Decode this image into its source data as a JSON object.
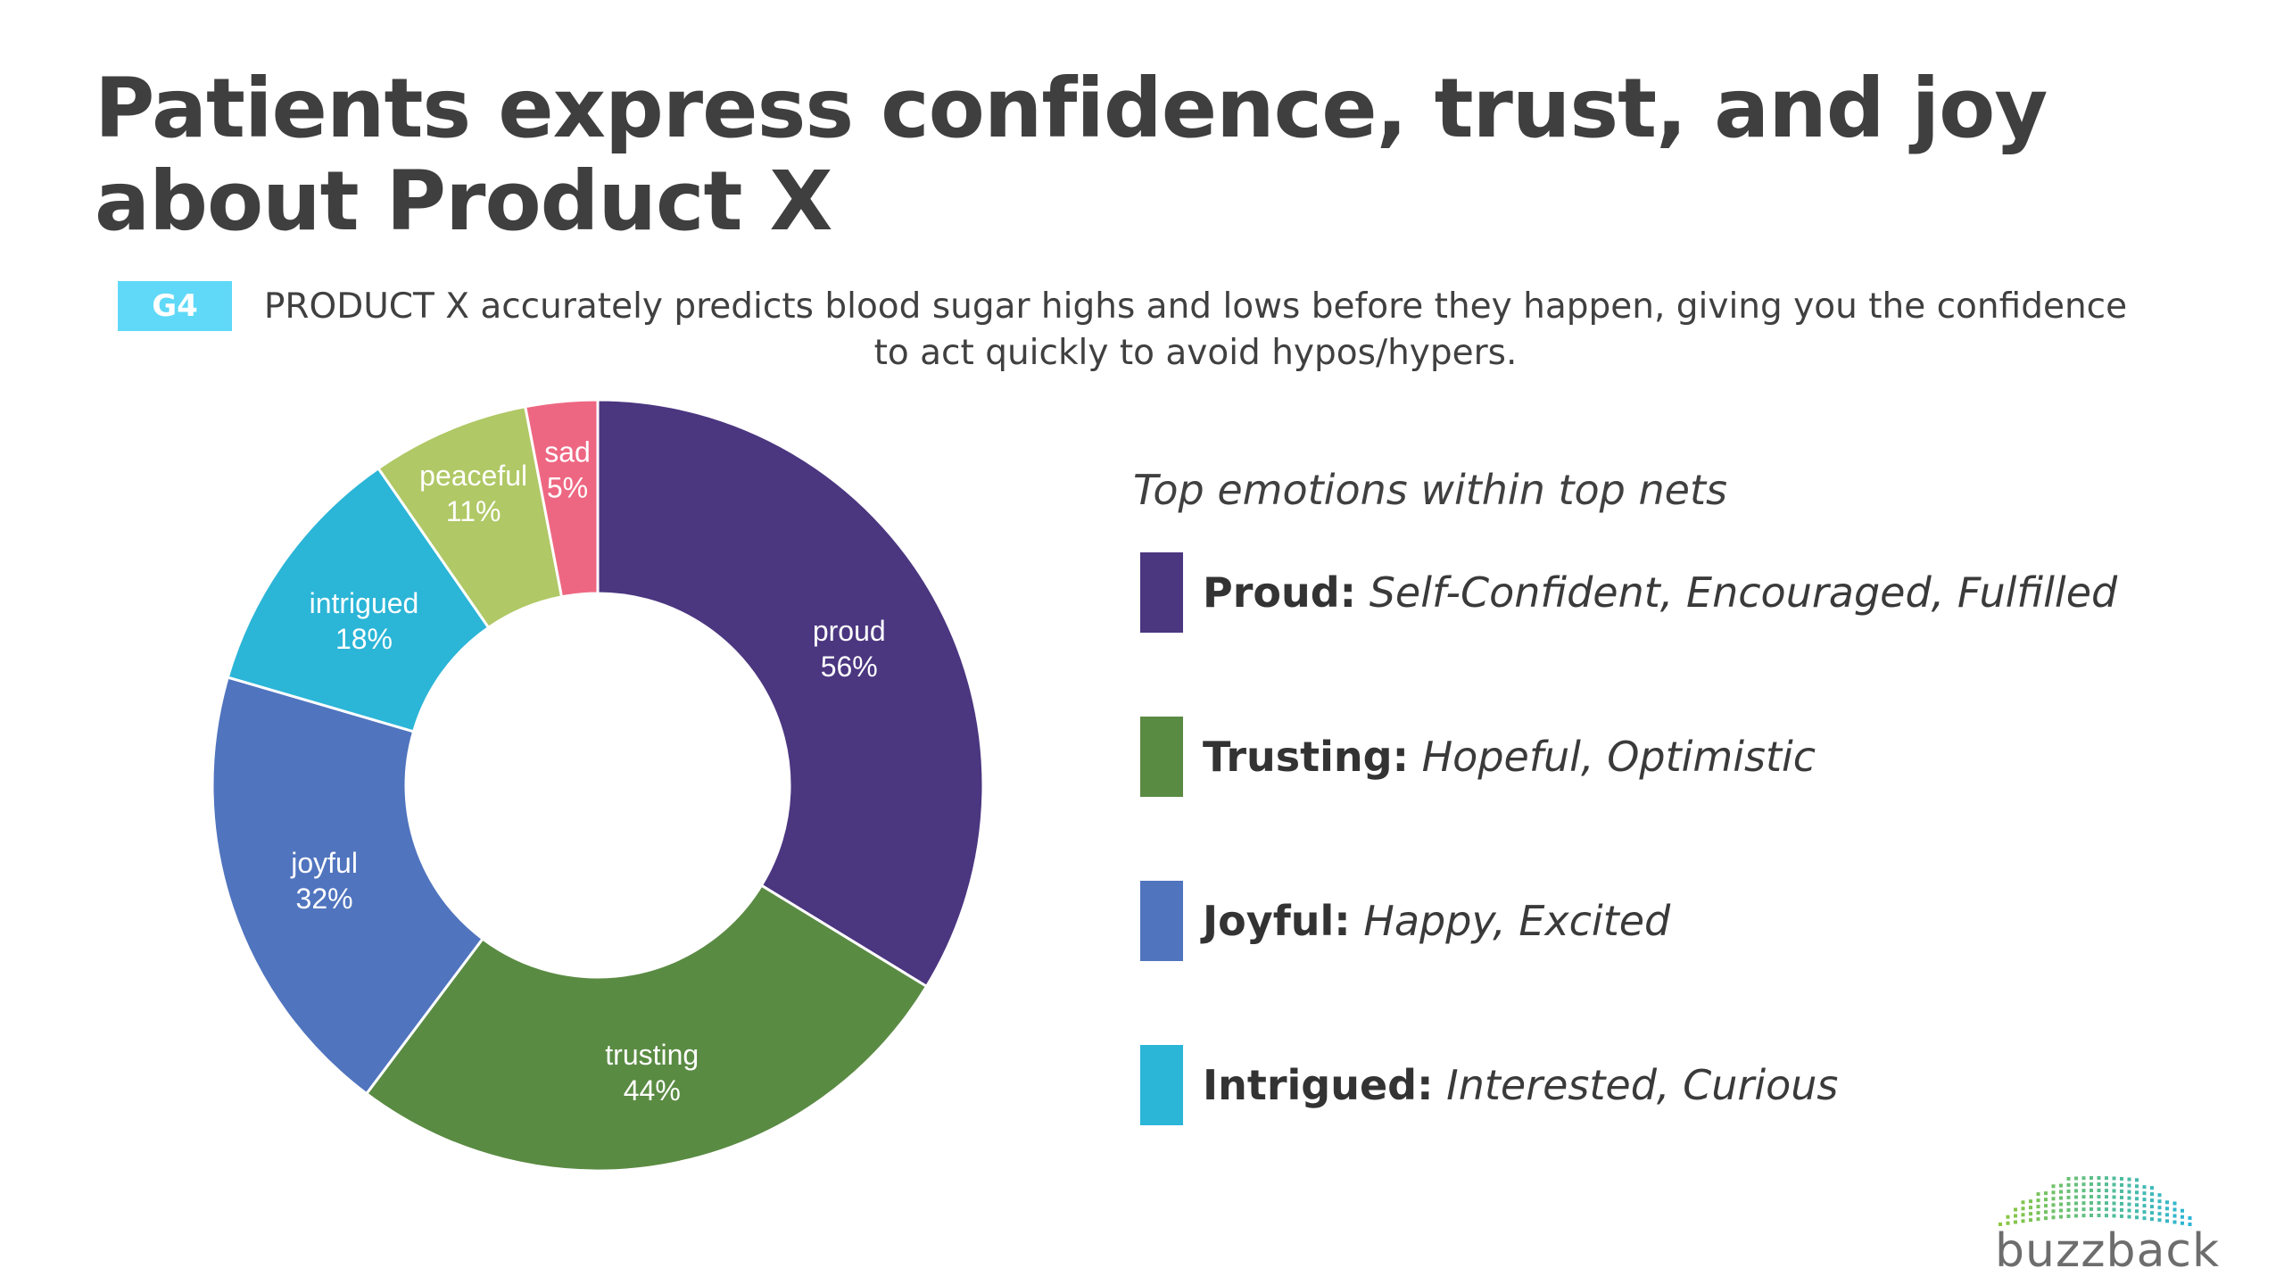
{
  "slide": {
    "title": "Patients express confidence, trust, and joy about Product X",
    "tag": "G4",
    "statement": "PRODUCT X accurately predicts blood sugar highs and lows before they happen, giving you the confidence to act quickly to avoid hypos/hypers."
  },
  "chart_data": {
    "type": "pie",
    "title": "",
    "categories": [
      "proud",
      "trusting",
      "joyful",
      "intrigued",
      "peaceful",
      "sad"
    ],
    "values": [
      56,
      44,
      32,
      18,
      11,
      5
    ],
    "labels": [
      "56%",
      "44%",
      "32%",
      "18%",
      "11%",
      "5%"
    ],
    "colors": [
      "#4b3680",
      "#5a8b43",
      "#5074be",
      "#2bb5d7",
      "#b0c865",
      "#ee6782"
    ],
    "legend_placement": "right"
  },
  "legend": {
    "title": "Top emotions within top nets",
    "items": [
      {
        "name": "Proud:",
        "desc": "Self-Confident, Encouraged, Fulfilled",
        "color": "#4b3680"
      },
      {
        "name": "Trusting:",
        "desc": "Hopeful, Optimistic",
        "color": "#5a8b43"
      },
      {
        "name": "Joyful:",
        "desc": "Happy, Excited",
        "color": "#5074be"
      },
      {
        "name": "Intrigued:",
        "desc": "Interested, Curious",
        "color": "#2bb5d7"
      }
    ]
  },
  "logo": {
    "text": "buzzback",
    "colors": [
      "#8dc63f",
      "#2bb5d7"
    ]
  }
}
